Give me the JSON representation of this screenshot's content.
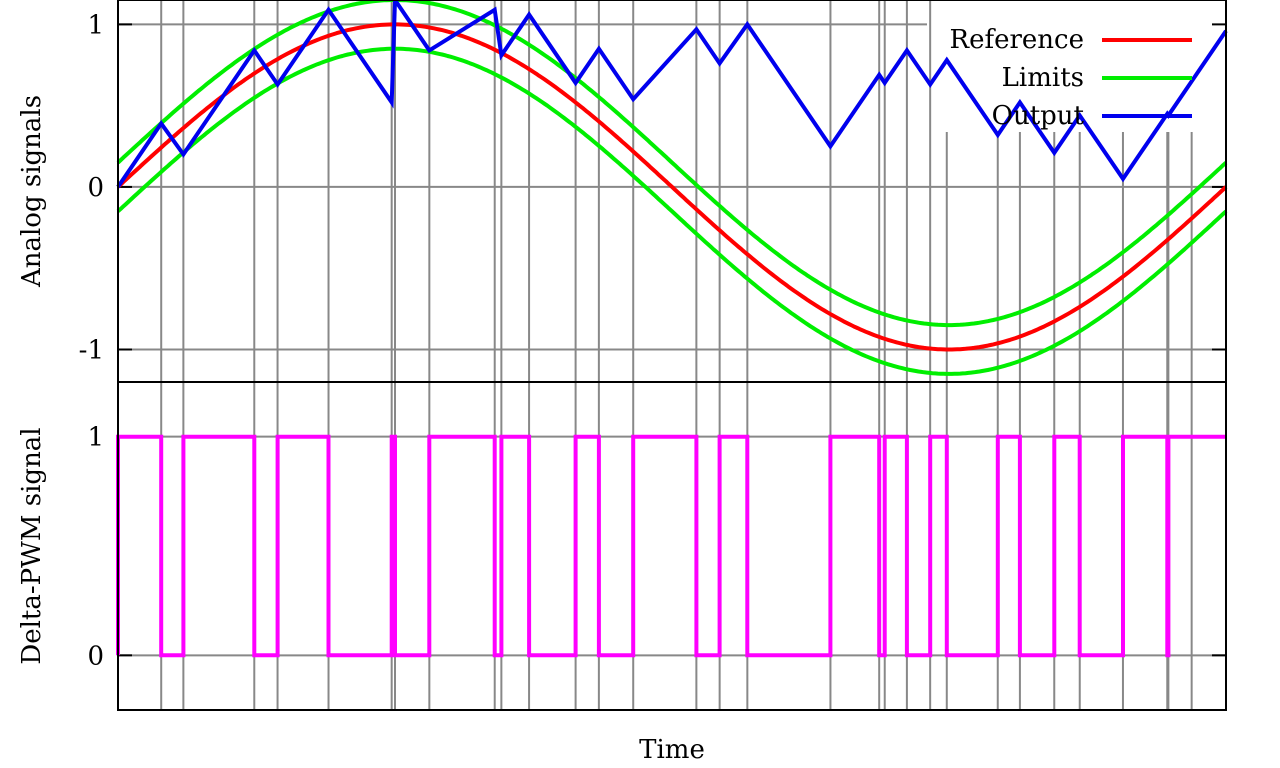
{
  "chart_data": [
    {
      "type": "line",
      "title": "",
      "xlabel": "",
      "ylabel": "Analog signals",
      "ylim": [
        -1.2,
        1.15
      ],
      "xlim": [
        0,
        1
      ],
      "grid": true,
      "legend_position": "top-right",
      "yticks": [
        {
          "value": 1,
          "label": "1"
        },
        {
          "value": 0,
          "label": "0"
        },
        {
          "value": -1,
          "label": "-1"
        }
      ],
      "event_times": [
        0.039,
        0.059,
        0.123,
        0.144,
        0.19,
        0.247,
        0.25,
        0.281,
        0.34,
        0.346,
        0.371,
        0.413,
        0.434,
        0.465,
        0.522,
        0.543,
        0.568,
        0.643,
        0.687,
        0.692,
        0.712,
        0.733,
        0.748,
        0.794,
        0.814,
        0.845,
        0.868,
        0.907,
        0.947,
        0.948,
        0.969,
        1.0
      ],
      "series": [
        {
          "name": "Reference",
          "color": "#ff0000",
          "function": "sin(2*pi*t)",
          "x": [
            0,
            0.125,
            0.25,
            0.375,
            0.5,
            0.625,
            0.75,
            0.875,
            1
          ],
          "values": [
            0,
            0.707,
            1,
            0.707,
            0,
            -0.707,
            -1,
            -0.707,
            0
          ]
        },
        {
          "name": "Limits",
          "color": "#00ee00",
          "function": "sin(2*pi*t) +/- 0.15",
          "offset": 0.15,
          "x": [
            0,
            0.25,
            0.5,
            0.75,
            1
          ],
          "values_upper": [
            0.15,
            1.15,
            0.15,
            -0.85,
            0.15
          ],
          "values_lower": [
            -0.15,
            0.85,
            -0.15,
            -1.15,
            -0.15
          ]
        },
        {
          "name": "Output",
          "color": "#0000ee",
          "x": [
            0,
            0.039,
            0.059,
            0.123,
            0.144,
            0.19,
            0.247,
            0.25,
            0.281,
            0.34,
            0.346,
            0.371,
            0.413,
            0.434,
            0.465,
            0.522,
            0.543,
            0.568,
            0.643,
            0.687,
            0.692,
            0.712,
            0.733,
            0.748,
            0.794,
            0.814,
            0.845,
            0.868,
            0.907,
            0.947,
            0.948,
            0.969,
            1.0
          ],
          "values": [
            0.0,
            0.39,
            0.2,
            0.84,
            0.63,
            1.09,
            0.52,
            1.15,
            0.84,
            1.09,
            0.81,
            1.06,
            0.64,
            0.85,
            0.54,
            0.97,
            0.76,
            1.0,
            0.25,
            0.69,
            0.64,
            0.84,
            0.63,
            0.78,
            0.32,
            0.52,
            0.21,
            0.44,
            0.05,
            0.45,
            0.44,
            0.65,
            0.96
          ]
        }
      ]
    },
    {
      "type": "line",
      "title": "",
      "xlabel": "Time",
      "ylabel": "Delta-PWM signal",
      "ylim": [
        -0.25,
        1.25
      ],
      "xlim": [
        0,
        1
      ],
      "grid": true,
      "yticks": [
        {
          "value": 1,
          "label": "1"
        },
        {
          "value": 0,
          "label": "0"
        }
      ],
      "series": [
        {
          "color": "#ff00ff",
          "step": "post",
          "x": [
            0,
            0.039,
            0.059,
            0.123,
            0.144,
            0.19,
            0.247,
            0.25,
            0.281,
            0.34,
            0.346,
            0.371,
            0.413,
            0.434,
            0.465,
            0.522,
            0.543,
            0.568,
            0.643,
            0.687,
            0.692,
            0.712,
            0.733,
            0.748,
            0.794,
            0.814,
            0.845,
            0.868,
            0.907,
            0.947,
            0.948,
            0.969,
            1.0
          ],
          "values": [
            1,
            0,
            1,
            0,
            1,
            0,
            1,
            0,
            1,
            0,
            1,
            0,
            1,
            0,
            1,
            0,
            1,
            0,
            1,
            0,
            1,
            0,
            1,
            0,
            1,
            0,
            1,
            0,
            1,
            0,
            1,
            1,
            1
          ]
        }
      ]
    }
  ],
  "legend": [
    {
      "label": "Reference",
      "color": "#ff0000"
    },
    {
      "label": "Limits",
      "color": "#00ee00"
    },
    {
      "label": "Output",
      "color": "#0000ee"
    }
  ]
}
